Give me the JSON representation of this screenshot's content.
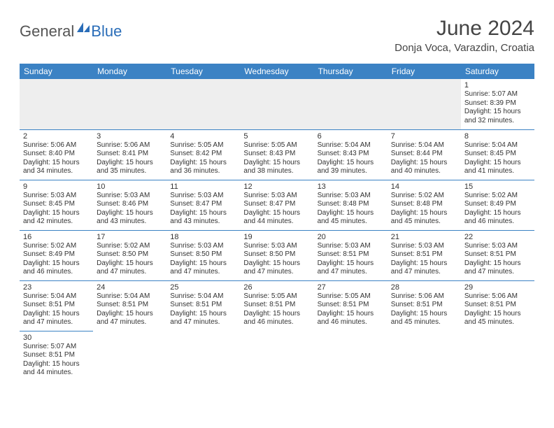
{
  "logo": {
    "part1": "General",
    "part2": "Blue"
  },
  "title": "June 2024",
  "subtitle": "Donja Voca, Varazdin, Croatia",
  "colors": {
    "header_bg": "#3b82c4",
    "header_text": "#ffffff",
    "border": "#3b82c4",
    "logo_gray": "#555555",
    "logo_blue": "#2a6db8",
    "cell_text": "#333333",
    "empty_bg": "#eeeeee"
  },
  "dayHeaders": [
    "Sunday",
    "Monday",
    "Tuesday",
    "Wednesday",
    "Thursday",
    "Friday",
    "Saturday"
  ],
  "weeks": [
    [
      null,
      null,
      null,
      null,
      null,
      null,
      {
        "n": "1",
        "sr": "Sunrise: 5:07 AM",
        "ss": "Sunset: 8:39 PM",
        "d1": "Daylight: 15 hours",
        "d2": "and 32 minutes."
      }
    ],
    [
      {
        "n": "2",
        "sr": "Sunrise: 5:06 AM",
        "ss": "Sunset: 8:40 PM",
        "d1": "Daylight: 15 hours",
        "d2": "and 34 minutes."
      },
      {
        "n": "3",
        "sr": "Sunrise: 5:06 AM",
        "ss": "Sunset: 8:41 PM",
        "d1": "Daylight: 15 hours",
        "d2": "and 35 minutes."
      },
      {
        "n": "4",
        "sr": "Sunrise: 5:05 AM",
        "ss": "Sunset: 8:42 PM",
        "d1": "Daylight: 15 hours",
        "d2": "and 36 minutes."
      },
      {
        "n": "5",
        "sr": "Sunrise: 5:05 AM",
        "ss": "Sunset: 8:43 PM",
        "d1": "Daylight: 15 hours",
        "d2": "and 38 minutes."
      },
      {
        "n": "6",
        "sr": "Sunrise: 5:04 AM",
        "ss": "Sunset: 8:43 PM",
        "d1": "Daylight: 15 hours",
        "d2": "and 39 minutes."
      },
      {
        "n": "7",
        "sr": "Sunrise: 5:04 AM",
        "ss": "Sunset: 8:44 PM",
        "d1": "Daylight: 15 hours",
        "d2": "and 40 minutes."
      },
      {
        "n": "8",
        "sr": "Sunrise: 5:04 AM",
        "ss": "Sunset: 8:45 PM",
        "d1": "Daylight: 15 hours",
        "d2": "and 41 minutes."
      }
    ],
    [
      {
        "n": "9",
        "sr": "Sunrise: 5:03 AM",
        "ss": "Sunset: 8:45 PM",
        "d1": "Daylight: 15 hours",
        "d2": "and 42 minutes."
      },
      {
        "n": "10",
        "sr": "Sunrise: 5:03 AM",
        "ss": "Sunset: 8:46 PM",
        "d1": "Daylight: 15 hours",
        "d2": "and 43 minutes."
      },
      {
        "n": "11",
        "sr": "Sunrise: 5:03 AM",
        "ss": "Sunset: 8:47 PM",
        "d1": "Daylight: 15 hours",
        "d2": "and 43 minutes."
      },
      {
        "n": "12",
        "sr": "Sunrise: 5:03 AM",
        "ss": "Sunset: 8:47 PM",
        "d1": "Daylight: 15 hours",
        "d2": "and 44 minutes."
      },
      {
        "n": "13",
        "sr": "Sunrise: 5:03 AM",
        "ss": "Sunset: 8:48 PM",
        "d1": "Daylight: 15 hours",
        "d2": "and 45 minutes."
      },
      {
        "n": "14",
        "sr": "Sunrise: 5:02 AM",
        "ss": "Sunset: 8:48 PM",
        "d1": "Daylight: 15 hours",
        "d2": "and 45 minutes."
      },
      {
        "n": "15",
        "sr": "Sunrise: 5:02 AM",
        "ss": "Sunset: 8:49 PM",
        "d1": "Daylight: 15 hours",
        "d2": "and 46 minutes."
      }
    ],
    [
      {
        "n": "16",
        "sr": "Sunrise: 5:02 AM",
        "ss": "Sunset: 8:49 PM",
        "d1": "Daylight: 15 hours",
        "d2": "and 46 minutes."
      },
      {
        "n": "17",
        "sr": "Sunrise: 5:02 AM",
        "ss": "Sunset: 8:50 PM",
        "d1": "Daylight: 15 hours",
        "d2": "and 47 minutes."
      },
      {
        "n": "18",
        "sr": "Sunrise: 5:03 AM",
        "ss": "Sunset: 8:50 PM",
        "d1": "Daylight: 15 hours",
        "d2": "and 47 minutes."
      },
      {
        "n": "19",
        "sr": "Sunrise: 5:03 AM",
        "ss": "Sunset: 8:50 PM",
        "d1": "Daylight: 15 hours",
        "d2": "and 47 minutes."
      },
      {
        "n": "20",
        "sr": "Sunrise: 5:03 AM",
        "ss": "Sunset: 8:51 PM",
        "d1": "Daylight: 15 hours",
        "d2": "and 47 minutes."
      },
      {
        "n": "21",
        "sr": "Sunrise: 5:03 AM",
        "ss": "Sunset: 8:51 PM",
        "d1": "Daylight: 15 hours",
        "d2": "and 47 minutes."
      },
      {
        "n": "22",
        "sr": "Sunrise: 5:03 AM",
        "ss": "Sunset: 8:51 PM",
        "d1": "Daylight: 15 hours",
        "d2": "and 47 minutes."
      }
    ],
    [
      {
        "n": "23",
        "sr": "Sunrise: 5:04 AM",
        "ss": "Sunset: 8:51 PM",
        "d1": "Daylight: 15 hours",
        "d2": "and 47 minutes."
      },
      {
        "n": "24",
        "sr": "Sunrise: 5:04 AM",
        "ss": "Sunset: 8:51 PM",
        "d1": "Daylight: 15 hours",
        "d2": "and 47 minutes."
      },
      {
        "n": "25",
        "sr": "Sunrise: 5:04 AM",
        "ss": "Sunset: 8:51 PM",
        "d1": "Daylight: 15 hours",
        "d2": "and 47 minutes."
      },
      {
        "n": "26",
        "sr": "Sunrise: 5:05 AM",
        "ss": "Sunset: 8:51 PM",
        "d1": "Daylight: 15 hours",
        "d2": "and 46 minutes."
      },
      {
        "n": "27",
        "sr": "Sunrise: 5:05 AM",
        "ss": "Sunset: 8:51 PM",
        "d1": "Daylight: 15 hours",
        "d2": "and 46 minutes."
      },
      {
        "n": "28",
        "sr": "Sunrise: 5:06 AM",
        "ss": "Sunset: 8:51 PM",
        "d1": "Daylight: 15 hours",
        "d2": "and 45 minutes."
      },
      {
        "n": "29",
        "sr": "Sunrise: 5:06 AM",
        "ss": "Sunset: 8:51 PM",
        "d1": "Daylight: 15 hours",
        "d2": "and 45 minutes."
      }
    ],
    [
      {
        "n": "30",
        "sr": "Sunrise: 5:07 AM",
        "ss": "Sunset: 8:51 PM",
        "d1": "Daylight: 15 hours",
        "d2": "and 44 minutes."
      },
      null,
      null,
      null,
      null,
      null,
      null
    ]
  ]
}
